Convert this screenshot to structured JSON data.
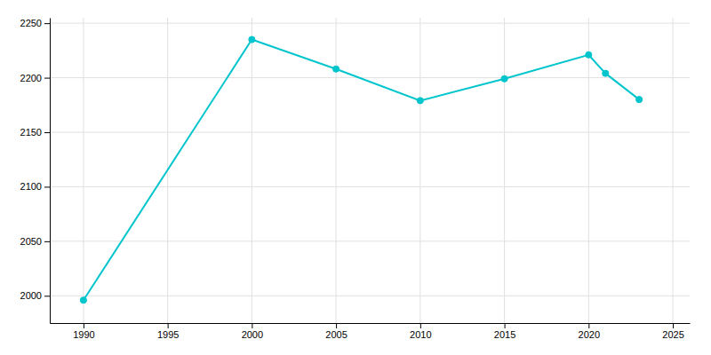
{
  "chart_data": {
    "type": "line",
    "x": [
      1990,
      2000,
      2005,
      2010,
      2015,
      2020,
      2021,
      2023
    ],
    "values": [
      1996,
      2235,
      2208,
      2179,
      2199,
      2221,
      2204,
      2180
    ],
    "color": "#00C5CD",
    "marker": "circle",
    "xlim": [
      1988,
      2026
    ],
    "ylim": [
      1975,
      2255
    ],
    "xticks": [
      1990,
      1995,
      2000,
      2005,
      2010,
      2015,
      2020,
      2025
    ],
    "yticks": [
      2000,
      2050,
      2100,
      2150,
      2200,
      2250
    ],
    "grid": true
  }
}
